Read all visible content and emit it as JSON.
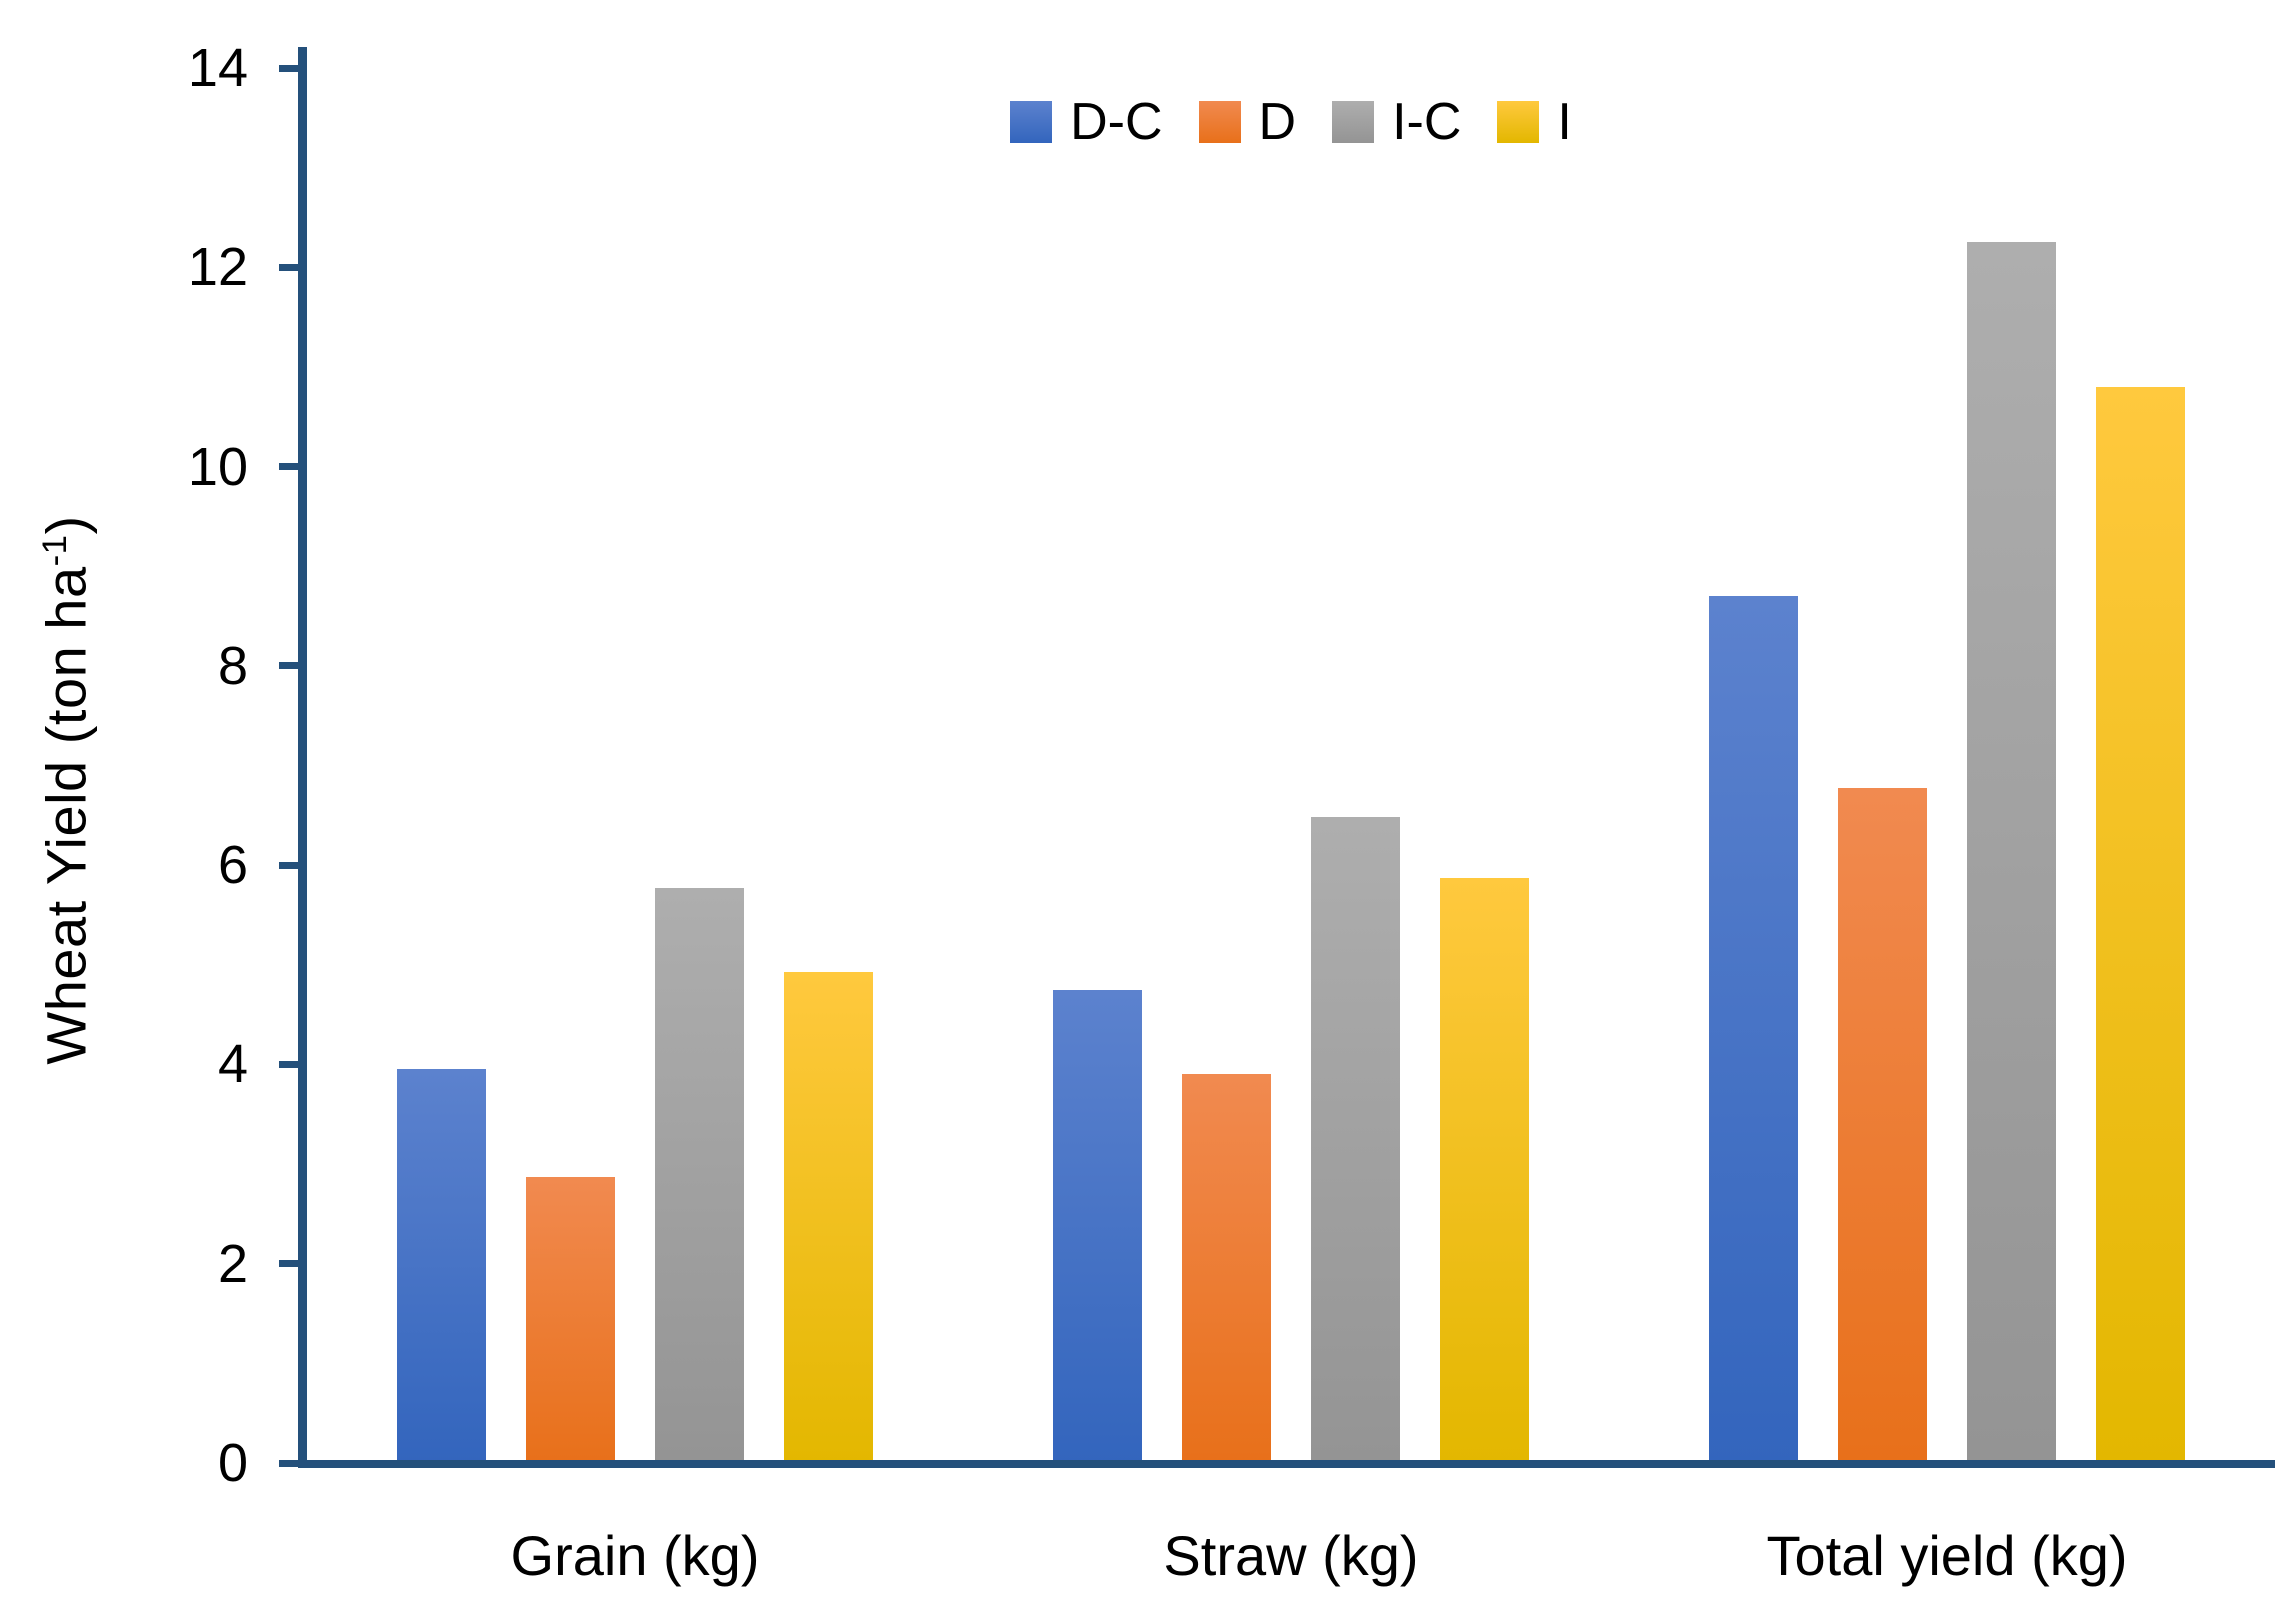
{
  "chart_data": {
    "type": "bar",
    "title": "",
    "xlabel": "",
    "ylabel": "Wheat Yield (ton ha⁻¹)",
    "ylabel_parts": {
      "pre": "Wheat Yield (ton ha",
      "sup": "-1",
      "post": ")"
    },
    "categories": [
      "Grain (kg)",
      "Straw (kg)",
      "Total yield (kg)"
    ],
    "series": [
      {
        "name": "D-C",
        "values": [
          3.95,
          4.75,
          8.7
        ],
        "color_top": "#5C82CE",
        "color_bottom": "#3365BD"
      },
      {
        "name": "D",
        "values": [
          2.87,
          3.9,
          6.77
        ],
        "color_top": "#F18A50",
        "color_bottom": "#E8701A"
      },
      {
        "name": "I-C",
        "values": [
          5.77,
          6.48,
          12.25
        ],
        "color_top": "#AEAEAE",
        "color_bottom": "#949494"
      },
      {
        "name": "I",
        "values": [
          4.93,
          5.87,
          10.8
        ],
        "color_top": "#FFC93E",
        "color_bottom": "#E3B700"
      }
    ],
    "ylim": [
      0,
      14
    ],
    "yticks": [
      0,
      2,
      4,
      6,
      8,
      10,
      12,
      14
    ],
    "legend_position": "top-center",
    "grid": false,
    "axis_color": "#24507B",
    "text_color": "#000000",
    "background": "#FFFFFF"
  }
}
